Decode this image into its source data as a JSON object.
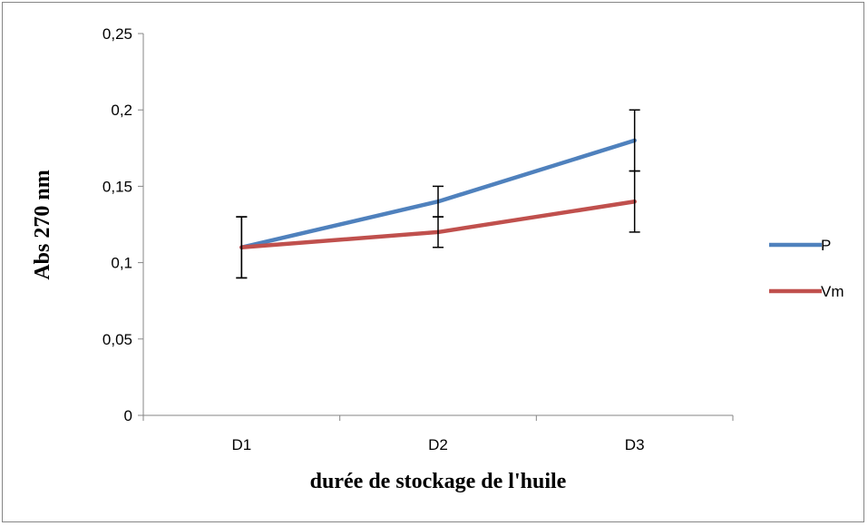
{
  "chart_data": {
    "type": "line",
    "title": "",
    "xlabel": "durée de stockage de l'huile",
    "ylabel": "Abs 270 nm",
    "categories": [
      "D1",
      "D2",
      "D3"
    ],
    "ylim": [
      0,
      0.25
    ],
    "yticks": [
      0,
      0.05,
      0.1,
      0.15,
      0.2,
      0.25
    ],
    "ytick_labels": [
      "0",
      "0,05",
      "0,1",
      "0,15",
      "0,2",
      "0,25"
    ],
    "grid": false,
    "legend_position": "right",
    "series": [
      {
        "name": "P",
        "values": [
          0.11,
          0.14,
          0.18
        ],
        "errors": [
          0.02,
          0.01,
          0.02
        ],
        "color": "#4f81bd"
      },
      {
        "name": "Vm",
        "values": [
          0.11,
          0.12,
          0.14
        ],
        "errors": [
          0.02,
          0.01,
          0.02
        ],
        "color": "#c0504d"
      }
    ]
  }
}
